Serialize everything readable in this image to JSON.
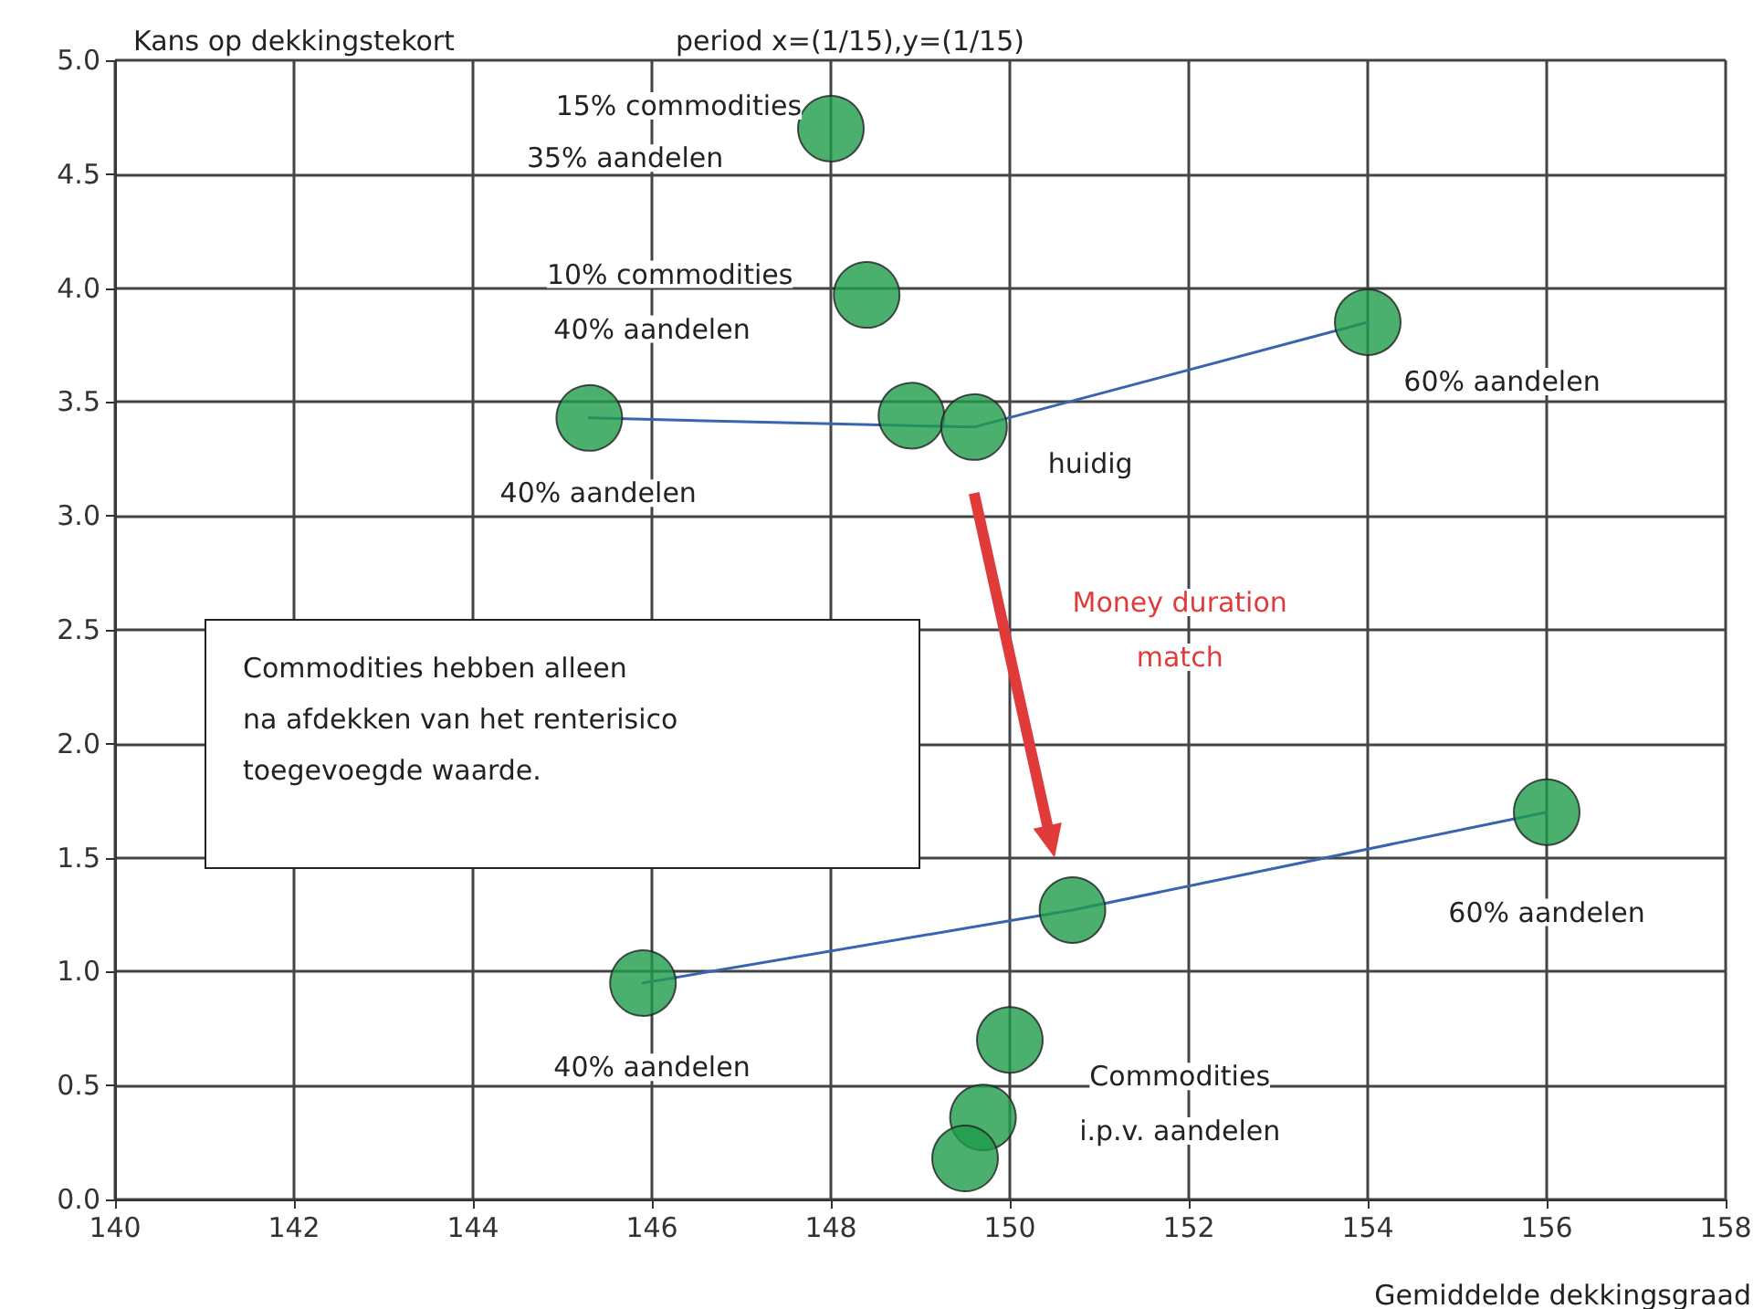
{
  "chart_data": {
    "type": "scatter",
    "title": "period x=(1/15),y=(1/15)",
    "xlabel": "Gemiddelde dekkingsgraad",
    "ylabel": "Kans op dekkingstekort",
    "xlim": [
      140,
      158
    ],
    "xticks": [
      140,
      142,
      144,
      146,
      148,
      150,
      152,
      154,
      156,
      158
    ],
    "ylim": [
      0,
      5
    ],
    "yticks": [
      {
        "value": 0,
        "label": "0.0"
      },
      {
        "value": 0.5,
        "label": "0.5"
      },
      {
        "value": 1,
        "label": "1.0"
      },
      {
        "value": 1.5,
        "label": "1.5"
      },
      {
        "value": 2,
        "label": "2.0"
      },
      {
        "value": 2.5,
        "label": "2.5"
      },
      {
        "value": 3,
        "label": "3.0"
      },
      {
        "value": 3.5,
        "label": "3.5"
      },
      {
        "value": 4,
        "label": "4.0"
      },
      {
        "value": 4.5,
        "label": "4.5"
      },
      {
        "value": 5,
        "label": "5.0"
      }
    ],
    "grid": true,
    "series": [
      {
        "type": "line",
        "color": "#3a63b0",
        "marker": "none",
        "line_style": "solid",
        "x": [
          145.3,
          149.6,
          154.0
        ],
        "values": [
          3.43,
          3.39,
          3.85
        ]
      },
      {
        "type": "line",
        "color": "#3a63b0",
        "marker": "none",
        "line_style": "solid",
        "x": [
          145.9,
          150.7,
          156.0
        ],
        "values": [
          0.95,
          1.27,
          1.7
        ]
      },
      {
        "color": "#1e9b4a",
        "marker": "circle",
        "x": [
          148.0,
          148.4,
          145.3,
          148.9,
          149.6,
          154.0,
          145.9,
          150.7,
          156.0,
          150.0,
          149.7,
          149.5
        ],
        "values": [
          4.7,
          3.97,
          3.43,
          3.44,
          3.39,
          3.85,
          0.95,
          1.27,
          1.7,
          0.7,
          0.36,
          0.18
        ]
      }
    ],
    "annotations": [
      "15% commodities",
      "35% aandelen",
      "10% commodities",
      "40% aandelen",
      "40% aandelen",
      "huidig",
      "60% aandelen",
      "Money duration",
      "match",
      "60% aandelen",
      "40% aandelen",
      "Commodities",
      "i.p.v. aandelen",
      "Commodities hebben alleen\nna afdekken van het renterisico\ntoegevoegde waarde."
    ]
  }
}
